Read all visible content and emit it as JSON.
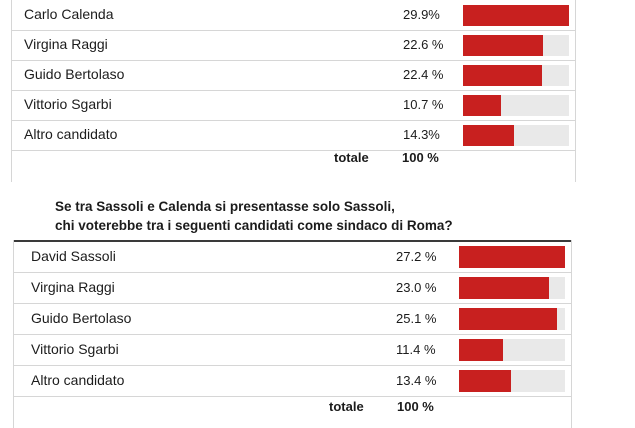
{
  "colors": {
    "bar": "#c8201f",
    "track": "#e9e9e9",
    "rule": "#d6d6d6"
  },
  "question": {
    "line1": "Se tra Sassoli e Calenda si presentasse solo Sassoli,",
    "line2": "chi voterebbe tra i seguenti candidati come sindaco di Roma?"
  },
  "chart_data": [
    {
      "type": "bar",
      "orientation": "horizontal",
      "categories": [
        "Carlo Calenda",
        "Virgina Raggi",
        "Guido Bertolaso",
        "Vittorio Sgarbi",
        "Altro candidato"
      ],
      "labels": [
        "29.9%",
        "22.6 %",
        "22.4 %",
        "10.7 %",
        "14.3%"
      ],
      "values": [
        29.9,
        22.6,
        22.4,
        10.7,
        14.3
      ],
      "total_label": "totale",
      "total_value": "100 %",
      "xlim": [
        0,
        30
      ]
    },
    {
      "type": "bar",
      "orientation": "horizontal",
      "categories": [
        "David Sassoli",
        "Virgina Raggi",
        "Guido Bertolaso",
        "Vittorio Sgarbi",
        "Altro candidato"
      ],
      "labels": [
        "27.2 %",
        "23.0 %",
        "25.1 %",
        "11.4 %",
        "13.4 %"
      ],
      "values": [
        27.2,
        23.0,
        25.1,
        11.4,
        13.4
      ],
      "total_label": "totale",
      "total_value": "100 %",
      "xlim": [
        0,
        27.2
      ]
    }
  ]
}
